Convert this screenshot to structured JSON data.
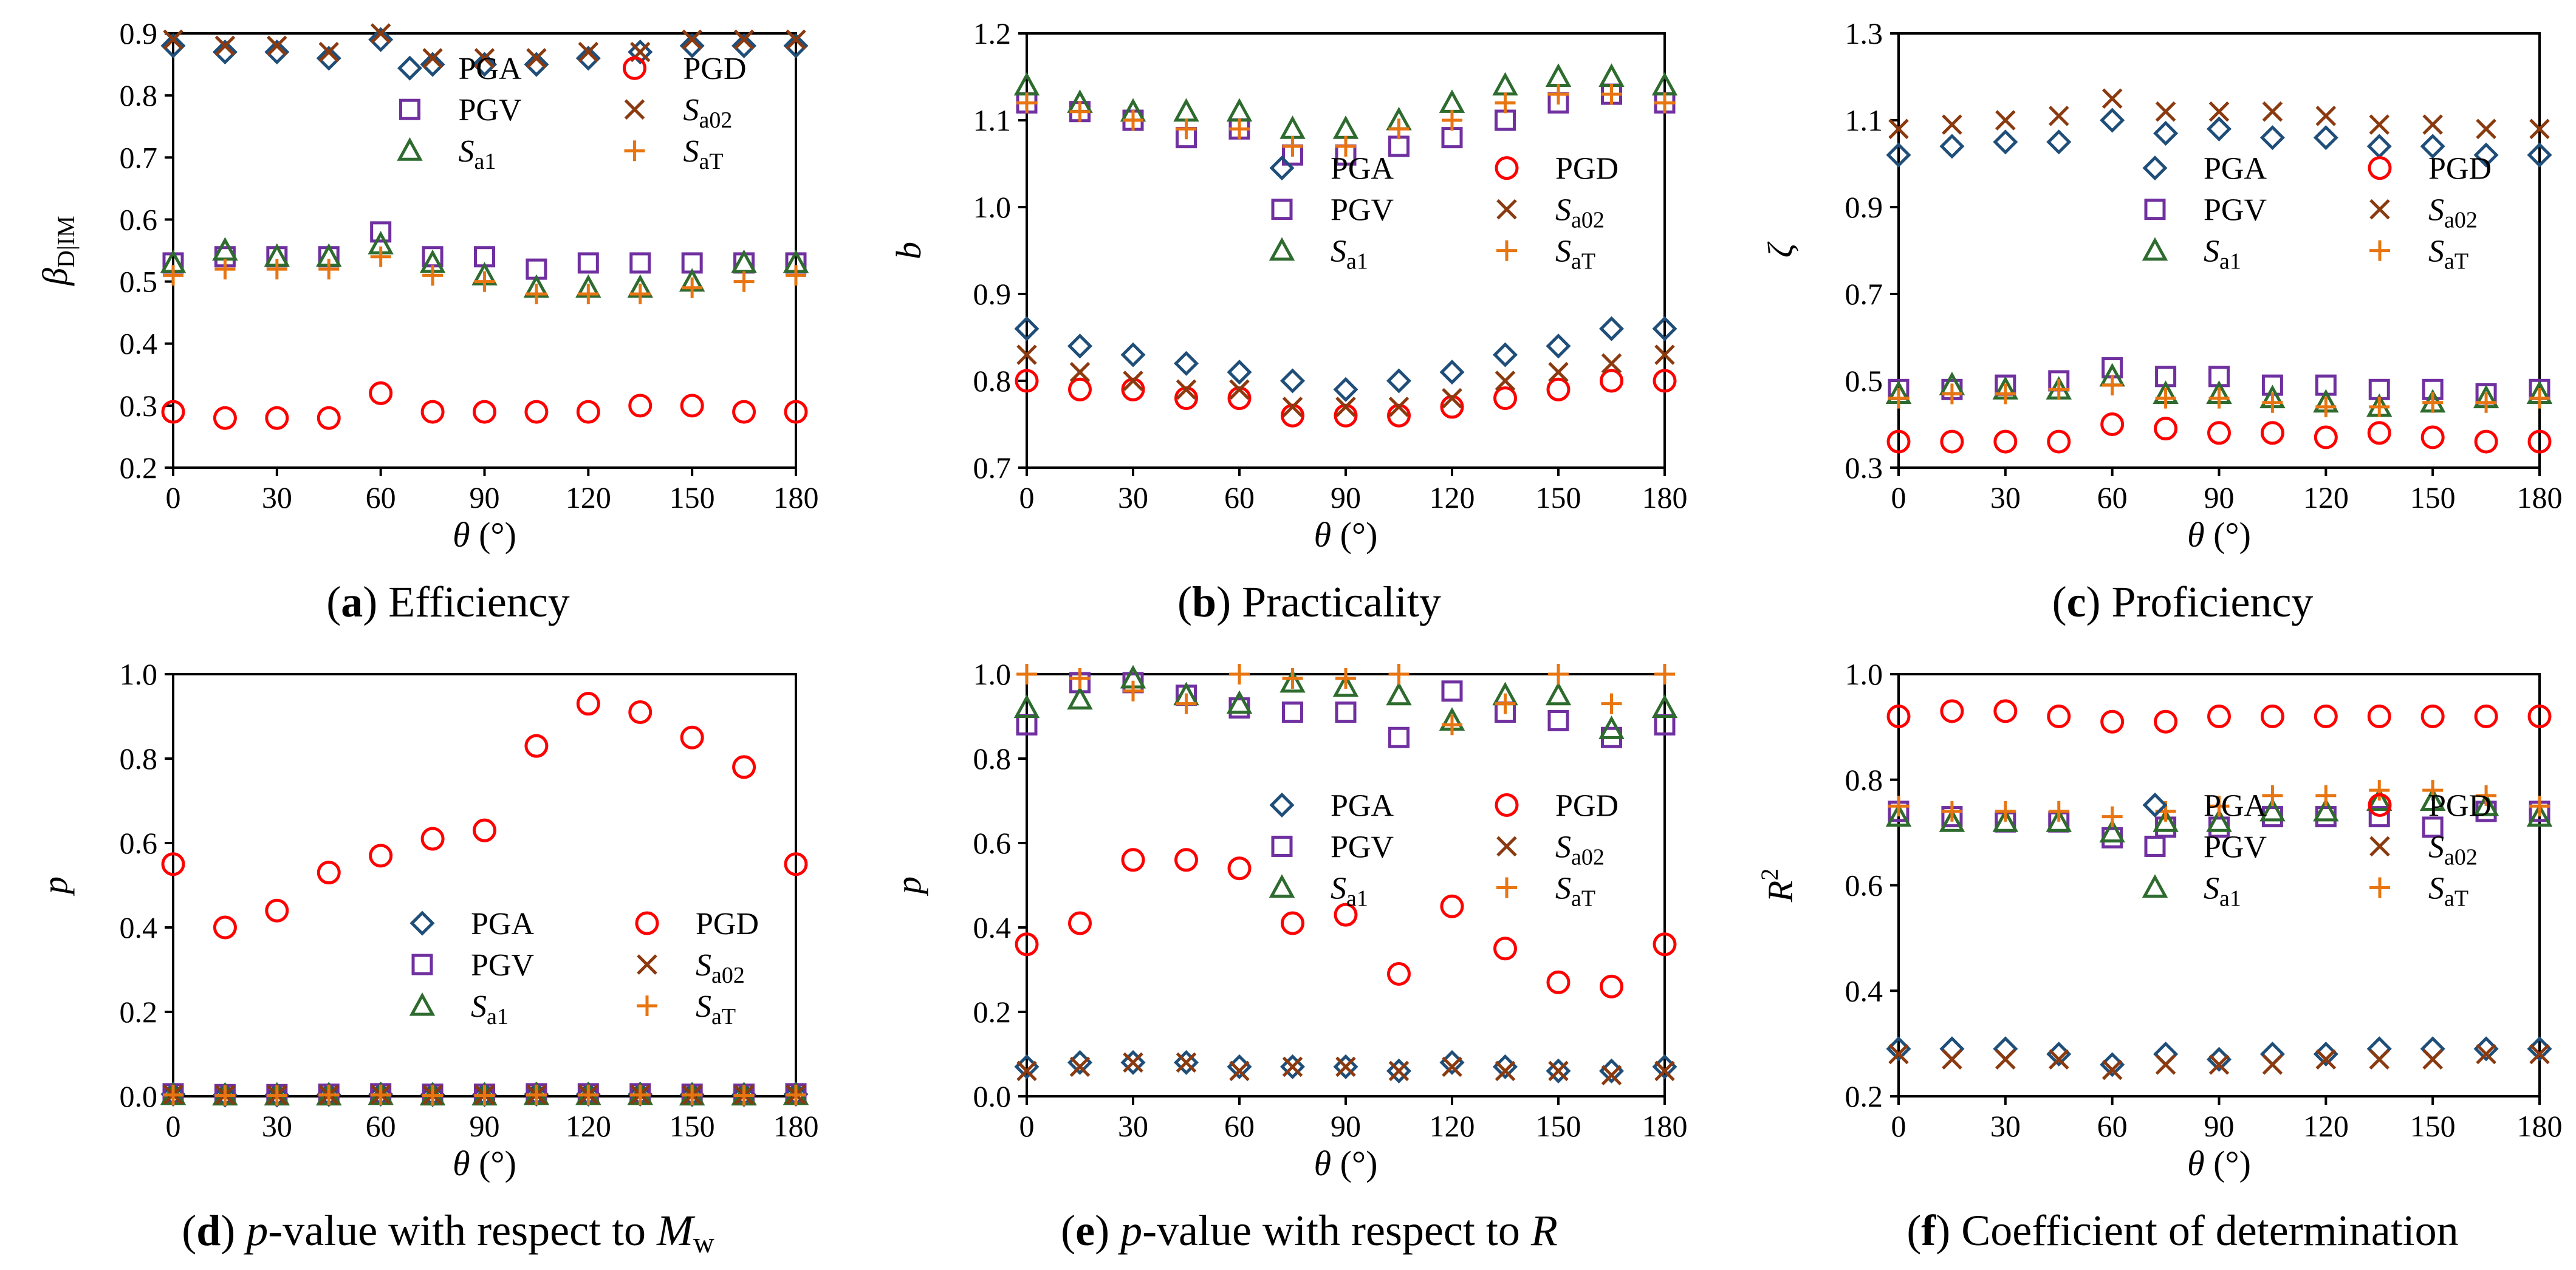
{
  "theme": {
    "colors": {
      "PGA": "#1f4e79",
      "PGV": "#7030a0",
      "Sa1": "#2e6b2e",
      "PGD": "#ff0000",
      "Sa02": "#8b3a0f",
      "SaT": "#e87511"
    }
  },
  "series_meta": [
    {
      "key": "PGA",
      "label": "PGA",
      "sub": "",
      "marker": "diamond"
    },
    {
      "key": "PGV",
      "label": "PGV",
      "sub": "",
      "marker": "square"
    },
    {
      "key": "Sa1",
      "label": "S",
      "sub": "a1",
      "marker": "triangle"
    },
    {
      "key": "PGD",
      "label": "PGD",
      "sub": "",
      "marker": "circle"
    },
    {
      "key": "Sa02",
      "label": "S",
      "sub": "a02",
      "marker": "x"
    },
    {
      "key": "SaT",
      "label": "S",
      "sub": "aT",
      "marker": "plus"
    }
  ],
  "chart_data": [
    {
      "id": "a",
      "type": "scatter",
      "caption": {
        "letter": "a",
        "text": "Efficiency"
      },
      "xlabel": "θ (°)",
      "ylabel": {
        "main": "β",
        "sub": "D|IM"
      },
      "x": [
        0,
        15,
        30,
        45,
        60,
        75,
        90,
        105,
        120,
        135,
        150,
        165,
        180
      ],
      "xlim": [
        0,
        180
      ],
      "xticks": [
        0,
        30,
        60,
        90,
        120,
        150,
        180
      ],
      "ylim": [
        0.2,
        0.9
      ],
      "yticks": [
        "0.2",
        "0.3",
        "0.4",
        "0.5",
        "0.6",
        "0.7",
        "0.8",
        "0.9"
      ],
      "legend_position": "top-right-upper",
      "series": [
        {
          "key": "PGA",
          "values": [
            0.88,
            0.87,
            0.87,
            0.86,
            0.89,
            0.85,
            0.85,
            0.85,
            0.86,
            0.87,
            0.88,
            0.88,
            0.88
          ]
        },
        {
          "key": "PGV",
          "values": [
            0.53,
            0.54,
            0.54,
            0.54,
            0.58,
            0.54,
            0.54,
            0.52,
            0.53,
            0.53,
            0.53,
            0.53,
            0.53
          ]
        },
        {
          "key": "Sa1",
          "values": [
            0.53,
            0.55,
            0.54,
            0.54,
            0.56,
            0.53,
            0.51,
            0.49,
            0.49,
            0.49,
            0.5,
            0.53,
            0.53
          ]
        },
        {
          "key": "PGD",
          "values": [
            0.29,
            0.28,
            0.28,
            0.28,
            0.32,
            0.29,
            0.29,
            0.29,
            0.29,
            0.3,
            0.3,
            0.29,
            0.29
          ]
        },
        {
          "key": "Sa02",
          "values": [
            0.89,
            0.88,
            0.88,
            0.87,
            0.9,
            0.86,
            0.86,
            0.86,
            0.87,
            0.87,
            0.89,
            0.89,
            0.89
          ]
        },
        {
          "key": "SaT",
          "values": [
            0.51,
            0.52,
            0.52,
            0.52,
            0.54,
            0.51,
            0.5,
            0.48,
            0.48,
            0.48,
            0.49,
            0.5,
            0.51
          ]
        }
      ]
    },
    {
      "id": "b",
      "type": "scatter",
      "caption": {
        "letter": "b",
        "text": "Practicality"
      },
      "xlabel": "θ (°)",
      "ylabel": {
        "main": "b",
        "sub": ""
      },
      "x": [
        0,
        15,
        30,
        45,
        60,
        75,
        90,
        105,
        120,
        135,
        150,
        165,
        180
      ],
      "xlim": [
        0,
        180
      ],
      "xticks": [
        0,
        30,
        60,
        90,
        120,
        150,
        180
      ],
      "ylim": [
        0.7,
        1.2
      ],
      "yticks": [
        "0.7",
        "0.8",
        "0.9",
        "1.0",
        "1.1",
        "1.2"
      ],
      "legend_position": "middle-right",
      "series": [
        {
          "key": "PGA",
          "values": [
            0.86,
            0.84,
            0.83,
            0.82,
            0.81,
            0.8,
            0.79,
            0.8,
            0.81,
            0.83,
            0.84,
            0.86,
            0.86
          ]
        },
        {
          "key": "PGV",
          "values": [
            1.12,
            1.11,
            1.1,
            1.08,
            1.09,
            1.06,
            1.06,
            1.07,
            1.08,
            1.1,
            1.12,
            1.13,
            1.12
          ]
        },
        {
          "key": "Sa1",
          "values": [
            1.14,
            1.12,
            1.11,
            1.11,
            1.11,
            1.09,
            1.09,
            1.1,
            1.12,
            1.14,
            1.15,
            1.15,
            1.14
          ]
        },
        {
          "key": "PGD",
          "values": [
            0.8,
            0.79,
            0.79,
            0.78,
            0.78,
            0.76,
            0.76,
            0.76,
            0.77,
            0.78,
            0.79,
            0.8,
            0.8
          ]
        },
        {
          "key": "Sa02",
          "values": [
            0.83,
            0.81,
            0.8,
            0.79,
            0.79,
            0.77,
            0.77,
            0.77,
            0.78,
            0.8,
            0.81,
            0.82,
            0.83
          ]
        },
        {
          "key": "SaT",
          "values": [
            1.12,
            1.11,
            1.1,
            1.09,
            1.09,
            1.07,
            1.07,
            1.09,
            1.1,
            1.12,
            1.13,
            1.13,
            1.12
          ]
        }
      ]
    },
    {
      "id": "c",
      "type": "scatter",
      "caption": {
        "letter": "c",
        "text": "Proficiency"
      },
      "xlabel": "θ (°)",
      "ylabel": {
        "main": "ζ",
        "sub": ""
      },
      "x": [
        0,
        15,
        30,
        45,
        60,
        75,
        90,
        105,
        120,
        135,
        150,
        165,
        180
      ],
      "xlim": [
        0,
        180
      ],
      "xticks": [
        0,
        30,
        60,
        90,
        120,
        150,
        180
      ],
      "ylim": [
        0.3,
        1.3
      ],
      "yticks": [
        "0.3",
        "0.5",
        "0.7",
        "0.9",
        "1.1",
        "1.3"
      ],
      "legend_position": "middle-right",
      "series": [
        {
          "key": "PGA",
          "values": [
            1.02,
            1.04,
            1.05,
            1.05,
            1.1,
            1.07,
            1.08,
            1.06,
            1.06,
            1.04,
            1.04,
            1.02,
            1.02
          ]
        },
        {
          "key": "PGV",
          "values": [
            0.48,
            0.48,
            0.49,
            0.5,
            0.53,
            0.51,
            0.51,
            0.49,
            0.49,
            0.48,
            0.48,
            0.47,
            0.48
          ]
        },
        {
          "key": "Sa1",
          "values": [
            0.47,
            0.49,
            0.48,
            0.48,
            0.51,
            0.47,
            0.47,
            0.46,
            0.45,
            0.44,
            0.45,
            0.46,
            0.47
          ]
        },
        {
          "key": "PGD",
          "values": [
            0.36,
            0.36,
            0.36,
            0.36,
            0.4,
            0.39,
            0.38,
            0.38,
            0.37,
            0.38,
            0.37,
            0.36,
            0.36
          ]
        },
        {
          "key": "Sa02",
          "values": [
            1.08,
            1.09,
            1.1,
            1.11,
            1.15,
            1.12,
            1.12,
            1.12,
            1.11,
            1.09,
            1.09,
            1.08,
            1.08
          ]
        },
        {
          "key": "SaT",
          "values": [
            0.46,
            0.47,
            0.47,
            0.48,
            0.49,
            0.46,
            0.46,
            0.45,
            0.44,
            0.44,
            0.45,
            0.45,
            0.46
          ]
        }
      ]
    },
    {
      "id": "d",
      "type": "scatter",
      "caption": {
        "letter": "d",
        "text_parts": [
          "p",
          "-value with respect to ",
          "M",
          "w"
        ]
      },
      "xlabel": "θ (°)",
      "ylabel": {
        "main": "p",
        "sub": ""
      },
      "x": [
        0,
        15,
        30,
        45,
        60,
        75,
        90,
        105,
        120,
        135,
        150,
        165,
        180
      ],
      "xlim": [
        0,
        180
      ],
      "xticks": [
        0,
        30,
        60,
        90,
        120,
        150,
        180
      ],
      "ylim": [
        0.0,
        1.0
      ],
      "yticks": [
        "0.0",
        "0.2",
        "0.4",
        "0.6",
        "0.8",
        "1.0"
      ],
      "legend_position": "bottom-right",
      "series": [
        {
          "key": "PGA",
          "values": [
            0.005,
            0.003,
            0.003,
            0.004,
            0.005,
            0.004,
            0.004,
            0.005,
            0.005,
            0.005,
            0.004,
            0.004,
            0.005
          ]
        },
        {
          "key": "PGV",
          "values": [
            0.006,
            0.004,
            0.004,
            0.005,
            0.006,
            0.005,
            0.005,
            0.006,
            0.006,
            0.006,
            0.005,
            0.005,
            0.006
          ]
        },
        {
          "key": "Sa1",
          "values": [
            0.003,
            0.002,
            0.002,
            0.002,
            0.003,
            0.002,
            0.002,
            0.003,
            0.003,
            0.003,
            0.002,
            0.002,
            0.003
          ]
        },
        {
          "key": "PGD",
          "values": [
            0.55,
            0.4,
            0.44,
            0.53,
            0.57,
            0.61,
            0.63,
            0.83,
            0.93,
            0.91,
            0.85,
            0.78,
            0.55
          ]
        },
        {
          "key": "Sa02",
          "values": [
            0.004,
            0.003,
            0.003,
            0.003,
            0.004,
            0.003,
            0.003,
            0.004,
            0.004,
            0.004,
            0.003,
            0.003,
            0.004
          ]
        },
        {
          "key": "SaT",
          "values": [
            0.003,
            0.002,
            0.002,
            0.003,
            0.003,
            0.002,
            0.002,
            0.003,
            0.003,
            0.003,
            0.003,
            0.002,
            0.003
          ]
        }
      ]
    },
    {
      "id": "e",
      "type": "scatter",
      "caption": {
        "letter": "e",
        "text_parts": [
          "p",
          "-value with respect to ",
          "R",
          ""
        ]
      },
      "xlabel": "θ (°)",
      "ylabel": {
        "main": "p",
        "sub": ""
      },
      "x": [
        0,
        15,
        30,
        45,
        60,
        75,
        90,
        105,
        120,
        135,
        150,
        165,
        180
      ],
      "xlim": [
        0,
        180
      ],
      "xticks": [
        0,
        30,
        60,
        90,
        120,
        150,
        180
      ],
      "ylim": [
        0.0,
        1.0
      ],
      "yticks": [
        "0.0",
        "0.2",
        "0.4",
        "0.6",
        "0.8",
        "1.0"
      ],
      "legend_position": "middle-right",
      "series": [
        {
          "key": "PGA",
          "values": [
            0.07,
            0.08,
            0.08,
            0.08,
            0.07,
            0.07,
            0.07,
            0.06,
            0.08,
            0.07,
            0.06,
            0.06,
            0.07
          ]
        },
        {
          "key": "PGV",
          "values": [
            0.88,
            0.98,
            0.98,
            0.95,
            0.92,
            0.91,
            0.91,
            0.85,
            0.96,
            0.91,
            0.89,
            0.85,
            0.88
          ]
        },
        {
          "key": "Sa1",
          "values": [
            0.92,
            0.94,
            0.99,
            0.95,
            0.93,
            0.98,
            0.97,
            0.95,
            0.89,
            0.95,
            0.95,
            0.87,
            0.92
          ]
        },
        {
          "key": "PGD",
          "values": [
            0.36,
            0.41,
            0.56,
            0.56,
            0.54,
            0.41,
            0.43,
            0.29,
            0.45,
            0.35,
            0.27,
            0.26,
            0.36
          ]
        },
        {
          "key": "Sa02",
          "values": [
            0.06,
            0.07,
            0.08,
            0.08,
            0.06,
            0.07,
            0.07,
            0.06,
            0.07,
            0.06,
            0.06,
            0.05,
            0.06
          ]
        },
        {
          "key": "SaT",
          "values": [
            1.0,
            0.99,
            0.96,
            0.93,
            1.0,
            0.99,
            0.99,
            1.0,
            0.88,
            0.93,
            1.0,
            0.93,
            1.0
          ]
        }
      ]
    },
    {
      "id": "f",
      "type": "scatter",
      "caption": {
        "letter": "f",
        "text": "Coefficient of determination"
      },
      "xlabel": "θ (°)",
      "ylabel": {
        "main": "R",
        "sup": "2"
      },
      "x": [
        0,
        15,
        30,
        45,
        60,
        75,
        90,
        105,
        120,
        135,
        150,
        165,
        180
      ],
      "xlim": [
        0,
        180
      ],
      "xticks": [
        0,
        30,
        60,
        90,
        120,
        150,
        180
      ],
      "ylim": [
        0.2,
        1.0
      ],
      "yticks": [
        "0.2",
        "0.4",
        "0.6",
        "0.8",
        "1.0"
      ],
      "legend_position": "middle-right",
      "series": [
        {
          "key": "PGA",
          "values": [
            0.29,
            0.29,
            0.29,
            0.28,
            0.26,
            0.28,
            0.27,
            0.28,
            0.28,
            0.29,
            0.29,
            0.29,
            0.29
          ]
        },
        {
          "key": "PGV",
          "values": [
            0.74,
            0.73,
            0.72,
            0.72,
            0.69,
            0.71,
            0.71,
            0.73,
            0.73,
            0.73,
            0.71,
            0.74,
            0.74
          ]
        },
        {
          "key": "Sa1",
          "values": [
            0.73,
            0.72,
            0.72,
            0.72,
            0.7,
            0.72,
            0.72,
            0.74,
            0.74,
            0.76,
            0.76,
            0.75,
            0.73
          ]
        },
        {
          "key": "PGD",
          "values": [
            0.92,
            0.93,
            0.93,
            0.92,
            0.91,
            0.91,
            0.92,
            0.92,
            0.92,
            0.92,
            0.92,
            0.92,
            0.92
          ]
        },
        {
          "key": "Sa02",
          "values": [
            0.28,
            0.27,
            0.27,
            0.27,
            0.25,
            0.26,
            0.26,
            0.26,
            0.27,
            0.27,
            0.27,
            0.28,
            0.28
          ]
        },
        {
          "key": "SaT",
          "values": [
            0.75,
            0.74,
            0.74,
            0.74,
            0.73,
            0.74,
            0.75,
            0.77,
            0.77,
            0.78,
            0.78,
            0.77,
            0.75
          ]
        }
      ]
    }
  ]
}
